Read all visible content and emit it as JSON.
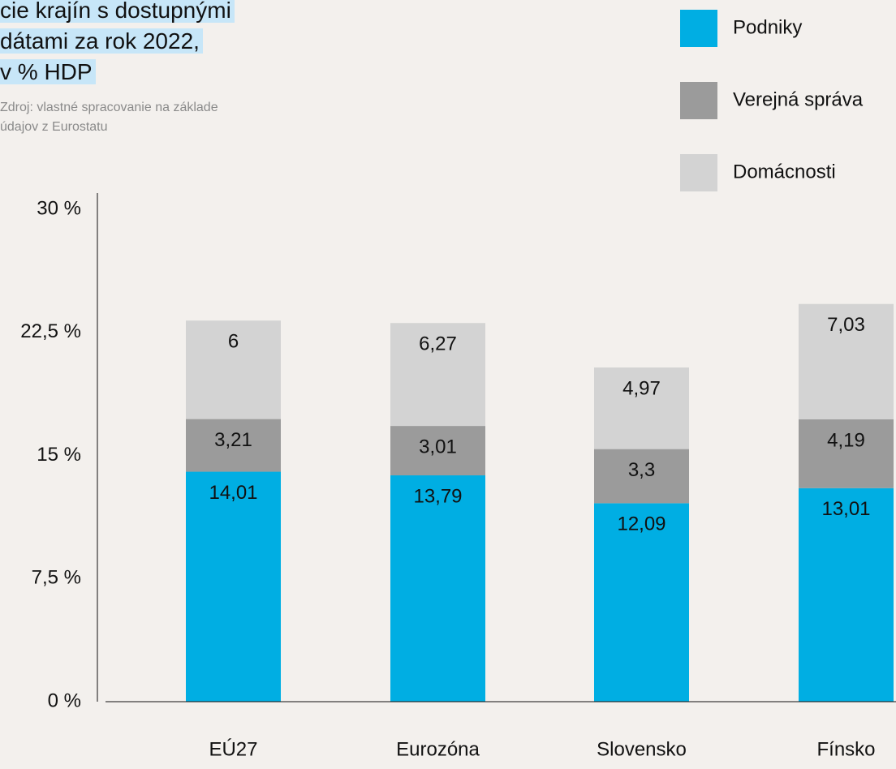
{
  "chart_data": {
    "type": "stacked_bar",
    "title_lines": [
      "cie krajín s dostupnými",
      "dátami za rok 2022,",
      "v % HDP"
    ],
    "source_lines": [
      "Zdroj: vlastné spracovanie na základe",
      "údajov z Eurostatu"
    ],
    "categories": [
      "EÚ27",
      "Eurozóna",
      "Slovensko",
      "Fínsko"
    ],
    "series": [
      {
        "name": "Podniky",
        "color": "#00aee3",
        "values": [
          14.01,
          13.79,
          12.09,
          13.01
        ],
        "value_labels": [
          "14,01",
          "13,79",
          "12,09",
          "13,01"
        ]
      },
      {
        "name": "Verejná správa",
        "color": "#9b9b9b",
        "values": [
          3.21,
          3.01,
          3.3,
          4.19
        ],
        "value_labels": [
          "3,21",
          "3,01",
          "3,3",
          "4,19"
        ]
      },
      {
        "name": "Domácnosti",
        "color": "#d3d3d3",
        "values": [
          6,
          6.27,
          4.97,
          7.03
        ],
        "value_labels": [
          "6",
          "6,27",
          "4,97",
          "7,03"
        ]
      }
    ],
    "ylim": [
      0,
      30
    ],
    "yticks": [
      {
        "value": 0,
        "label": "0 %"
      },
      {
        "value": 7.5,
        "label": "7,5 %"
      },
      {
        "value": 15,
        "label": "15 %"
      },
      {
        "value": 22.5,
        "label": "22,5 %"
      },
      {
        "value": 30,
        "label": "30 %"
      }
    ]
  }
}
